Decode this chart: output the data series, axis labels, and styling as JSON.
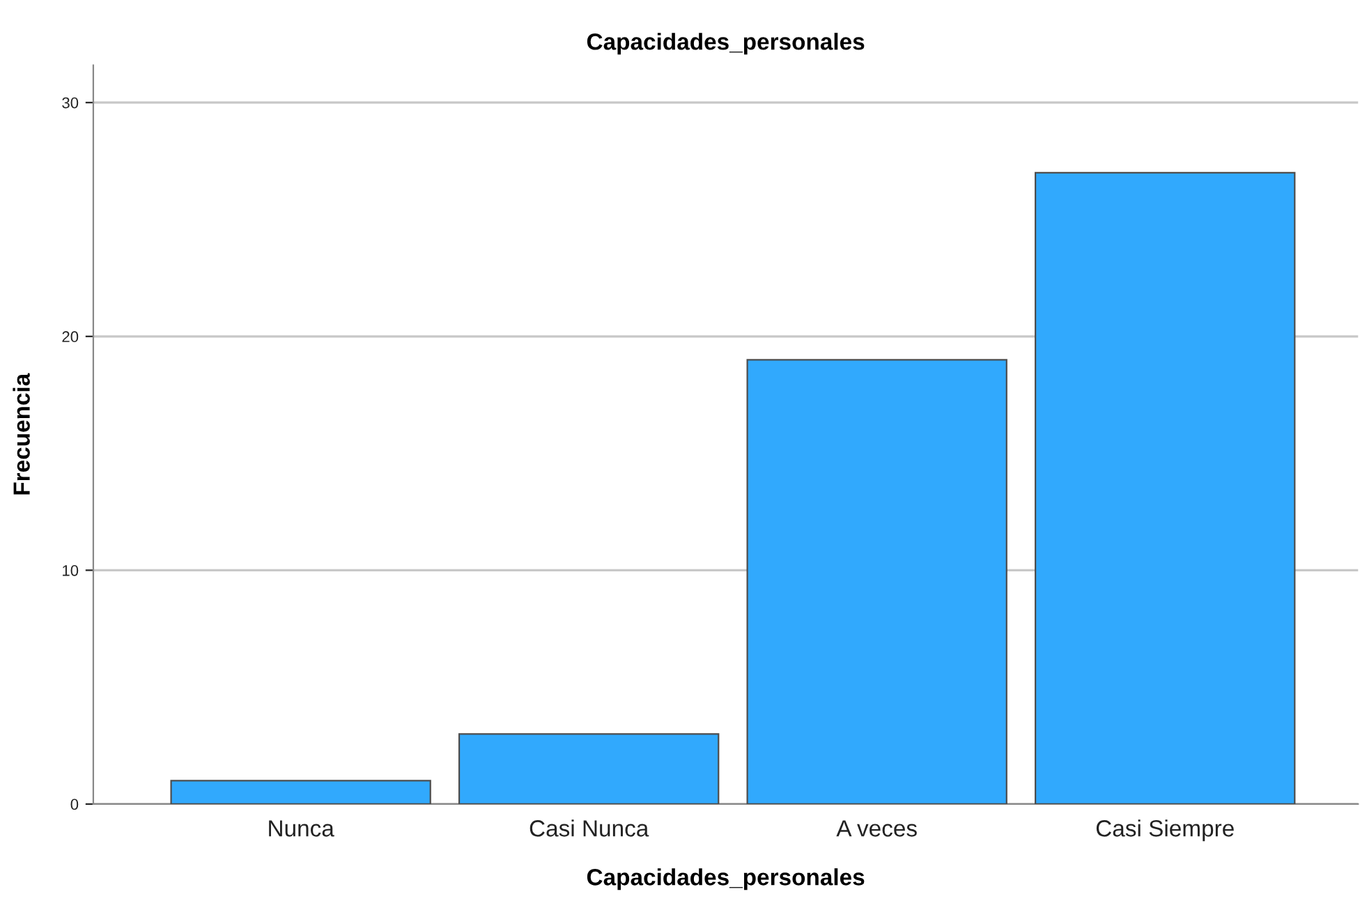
{
  "chart_data": {
    "type": "bar",
    "title": "Capacidades_personales",
    "xlabel": "Capacidades_personales",
    "ylabel": "Frecuencia",
    "categories": [
      "Nunca",
      "Casi Nunca",
      "A veces",
      "Casi Siempre"
    ],
    "values": [
      1,
      3,
      19,
      27
    ],
    "color": "#31a9fd",
    "ylim": [
      0,
      31.6
    ],
    "yticks": [
      0,
      10,
      20,
      30
    ],
    "grid": "y"
  }
}
